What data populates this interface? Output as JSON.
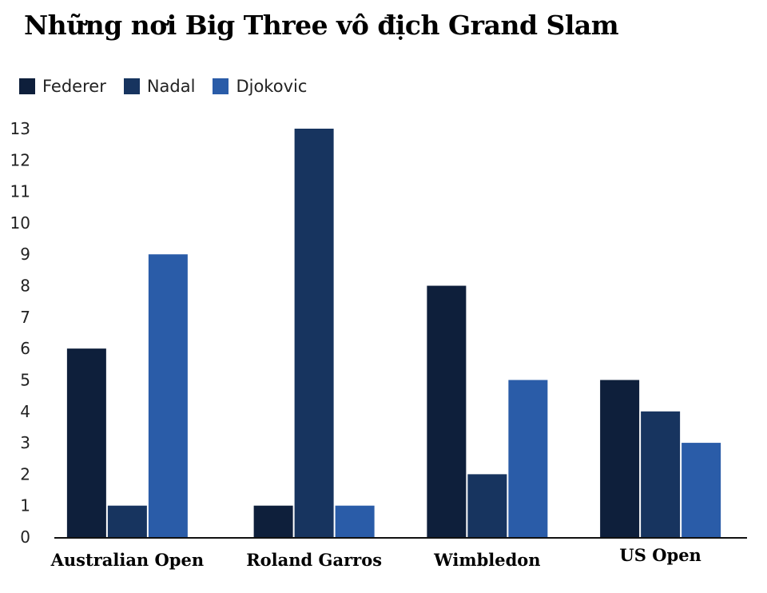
{
  "chart_data": {
    "type": "bar",
    "title": "Những nơi Big Three vô địch Grand Slam",
    "categories": [
      "Australian Open",
      "Roland Garros",
      "Wimbledon",
      "US Open"
    ],
    "series": [
      {
        "name": "Federer",
        "values": [
          6,
          1,
          8,
          5
        ],
        "color": "#0e1f3b"
      },
      {
        "name": "Nadal",
        "values": [
          1,
          13,
          2,
          4
        ],
        "color": "#17345f"
      },
      {
        "name": "Djokovic",
        "values": [
          9,
          1,
          5,
          3
        ],
        "color": "#2a5ca8"
      }
    ],
    "yticks": [
      "0",
      "1",
      "2",
      "3",
      "4",
      "5",
      "6",
      "7",
      "8",
      "9",
      "10",
      "11",
      "12",
      "13"
    ],
    "ylim": [
      0,
      13
    ],
    "grid": false,
    "legend_position": "top-left"
  }
}
